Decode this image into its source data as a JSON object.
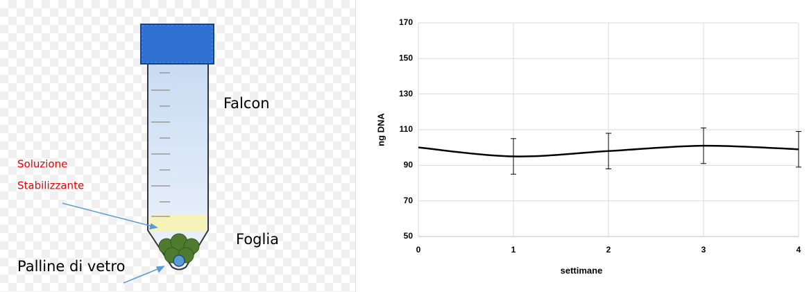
{
  "diagram": {
    "falcon": "Falcon",
    "solution_line1": "Soluzione",
    "solution_line2": "Stabilizzante",
    "leaf": "Foglia",
    "beads": "Palline di vetro"
  },
  "chart_data": {
    "type": "line",
    "xlabel": "settimane",
    "ylabel": "ng DNA",
    "x": [
      0,
      1,
      2,
      3,
      4
    ],
    "values": [
      100,
      95,
      98,
      101,
      99
    ],
    "errors": [
      null,
      10,
      10,
      10,
      10
    ],
    "color": "#000000",
    "xlim": [
      0,
      4
    ],
    "xticks": [
      0,
      1,
      2,
      3,
      4
    ],
    "ylim": [
      50,
      170
    ],
    "yticks": [
      50,
      70,
      90,
      110,
      130,
      150,
      170
    ],
    "grid": true
  }
}
